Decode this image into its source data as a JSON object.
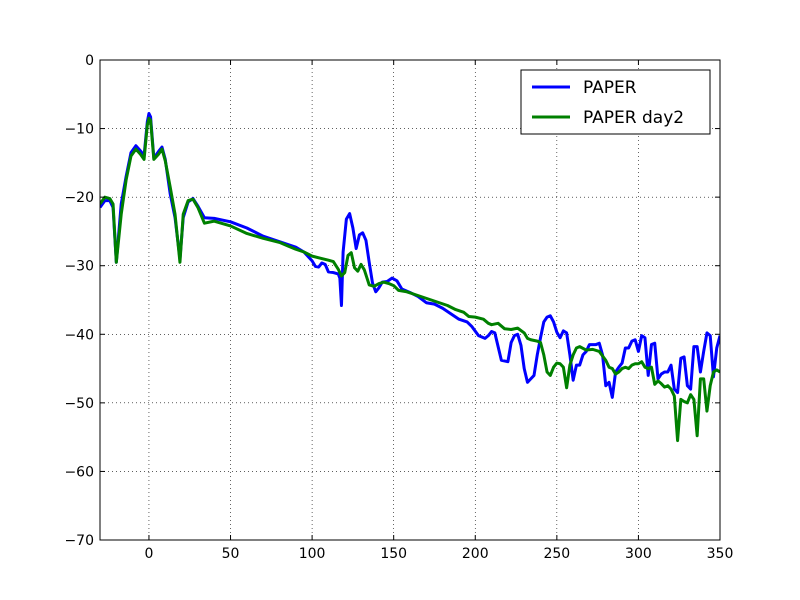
{
  "chart_data": {
    "type": "line",
    "title": "",
    "xlabel": "",
    "ylabel": "",
    "xlim": [
      -30,
      350
    ],
    "ylim": [
      -70,
      0
    ],
    "xticks": [
      0,
      50,
      100,
      150,
      200,
      250,
      300,
      350
    ],
    "yticks": [
      0,
      -10,
      -20,
      -30,
      -40,
      -50,
      -60,
      -70
    ],
    "grid": true,
    "legend_position": "top-right",
    "series": [
      {
        "name": "PAPER",
        "color": "#0000ff",
        "points": [
          [
            -30,
            -21.5
          ],
          [
            -27,
            -20.5
          ],
          [
            -24,
            -20.5
          ],
          [
            -22,
            -21.5
          ],
          [
            -20,
            -29.5
          ],
          [
            -17,
            -21.0
          ],
          [
            -14,
            -17.0
          ],
          [
            -11,
            -13.5
          ],
          [
            -8,
            -12.5
          ],
          [
            -5,
            -13.3
          ],
          [
            -3,
            -14.0
          ],
          [
            -1,
            -9.0
          ],
          [
            0,
            -7.8
          ],
          [
            1,
            -8.3
          ],
          [
            3,
            -14.3
          ],
          [
            6,
            -13.3
          ],
          [
            8,
            -12.7
          ],
          [
            10,
            -14.5
          ],
          [
            13,
            -19.5
          ],
          [
            16,
            -23.0
          ],
          [
            19,
            -29.0
          ],
          [
            21,
            -23.0
          ],
          [
            24,
            -20.7
          ],
          [
            27,
            -20.2
          ],
          [
            30,
            -21.3
          ],
          [
            34,
            -23.0
          ],
          [
            40,
            -23.1
          ],
          [
            50,
            -23.6
          ],
          [
            60,
            -24.5
          ],
          [
            70,
            -25.7
          ],
          [
            80,
            -26.5
          ],
          [
            85,
            -26.9
          ],
          [
            90,
            -27.3
          ],
          [
            95,
            -28.0
          ],
          [
            100,
            -29.3
          ],
          [
            102,
            -30.1
          ],
          [
            104,
            -30.2
          ],
          [
            106,
            -29.6
          ],
          [
            108,
            -29.8
          ],
          [
            110,
            -30.9
          ],
          [
            113,
            -31.0
          ],
          [
            116,
            -31.2
          ],
          [
            117,
            -31.8
          ],
          [
            118,
            -35.8
          ],
          [
            119,
            -28.0
          ],
          [
            121,
            -23.2
          ],
          [
            123,
            -22.4
          ],
          [
            125,
            -24.5
          ],
          [
            127,
            -27.5
          ],
          [
            129,
            -25.5
          ],
          [
            131,
            -25.2
          ],
          [
            133,
            -26.3
          ],
          [
            135,
            -29.5
          ],
          [
            137,
            -32.5
          ],
          [
            139,
            -33.8
          ],
          [
            141,
            -33.2
          ],
          [
            143,
            -32.4
          ],
          [
            146,
            -32.3
          ],
          [
            149,
            -31.8
          ],
          [
            152,
            -32.2
          ],
          [
            155,
            -33.4
          ],
          [
            160,
            -33.9
          ],
          [
            165,
            -34.5
          ],
          [
            170,
            -35.4
          ],
          [
            175,
            -35.6
          ],
          [
            180,
            -36.2
          ],
          [
            185,
            -37.0
          ],
          [
            190,
            -37.8
          ],
          [
            195,
            -38.2
          ],
          [
            198,
            -38.9
          ],
          [
            202,
            -40.2
          ],
          [
            206,
            -40.6
          ],
          [
            208,
            -40.2
          ],
          [
            210,
            -39.6
          ],
          [
            212,
            -39.8
          ],
          [
            214,
            -41.8
          ],
          [
            216,
            -43.8
          ],
          [
            220,
            -44.0
          ],
          [
            222,
            -41.2
          ],
          [
            224,
            -40.2
          ],
          [
            226,
            -40.0
          ],
          [
            228,
            -41.6
          ],
          [
            230,
            -45.0
          ],
          [
            232,
            -47.0
          ],
          [
            234,
            -46.5
          ],
          [
            236,
            -46.0
          ],
          [
            238,
            -43.0
          ],
          [
            240,
            -40.5
          ],
          [
            242,
            -38.2
          ],
          [
            244,
            -37.5
          ],
          [
            246,
            -37.3
          ],
          [
            248,
            -38.2
          ],
          [
            250,
            -39.7
          ],
          [
            252,
            -40.5
          ],
          [
            254,
            -39.5
          ],
          [
            256,
            -39.8
          ],
          [
            258,
            -43.0
          ],
          [
            260,
            -46.7
          ],
          [
            262,
            -44.5
          ],
          [
            264,
            -44.5
          ],
          [
            266,
            -43.0
          ],
          [
            268,
            -42.5
          ],
          [
            270,
            -41.5
          ],
          [
            272,
            -41.5
          ],
          [
            274,
            -41.5
          ],
          [
            276,
            -41.3
          ],
          [
            278,
            -43.0
          ],
          [
            280,
            -47.5
          ],
          [
            282,
            -47.0
          ],
          [
            284,
            -49.2
          ],
          [
            286,
            -45.5
          ],
          [
            288,
            -44.8
          ],
          [
            290,
            -44.2
          ],
          [
            292,
            -42.0
          ],
          [
            294,
            -42.0
          ],
          [
            296,
            -41.0
          ],
          [
            298,
            -40.8
          ],
          [
            300,
            -42.5
          ],
          [
            302,
            -40.2
          ],
          [
            304,
            -40.5
          ],
          [
            306,
            -46.0
          ],
          [
            308,
            -41.5
          ],
          [
            310,
            -41.3
          ],
          [
            312,
            -46.5
          ],
          [
            314,
            -45.8
          ],
          [
            316,
            -45.5
          ],
          [
            318,
            -45.5
          ],
          [
            320,
            -44.5
          ],
          [
            322,
            -48.0
          ],
          [
            324,
            -48.5
          ],
          [
            326,
            -43.5
          ],
          [
            328,
            -43.3
          ],
          [
            330,
            -47.5
          ],
          [
            332,
            -48.0
          ],
          [
            334,
            -41.8
          ],
          [
            336,
            -41.8
          ],
          [
            338,
            -45.5
          ],
          [
            340,
            -42.5
          ],
          [
            342,
            -39.8
          ],
          [
            344,
            -40.2
          ],
          [
            346,
            -46.2
          ],
          [
            348,
            -42.0
          ],
          [
            350,
            -40.2
          ]
        ]
      },
      {
        "name": "PAPER day2",
        "color": "#008000",
        "points": [
          [
            -30,
            -21.0
          ],
          [
            -27,
            -20.0
          ],
          [
            -24,
            -20.2
          ],
          [
            -22,
            -21.0
          ],
          [
            -20,
            -29.5
          ],
          [
            -17,
            -22.5
          ],
          [
            -14,
            -17.5
          ],
          [
            -11,
            -14.0
          ],
          [
            -8,
            -13.0
          ],
          [
            -5,
            -13.8
          ],
          [
            -3,
            -14.5
          ],
          [
            -1,
            -9.5
          ],
          [
            0,
            -8.5
          ],
          [
            1,
            -8.8
          ],
          [
            3,
            -14.5
          ],
          [
            6,
            -13.7
          ],
          [
            8,
            -13.0
          ],
          [
            10,
            -14.7
          ],
          [
            13,
            -18.5
          ],
          [
            16,
            -22.5
          ],
          [
            19,
            -29.5
          ],
          [
            21,
            -22.5
          ],
          [
            24,
            -20.5
          ],
          [
            27,
            -20.3
          ],
          [
            30,
            -21.5
          ],
          [
            34,
            -23.8
          ],
          [
            40,
            -23.5
          ],
          [
            50,
            -24.2
          ],
          [
            60,
            -25.3
          ],
          [
            70,
            -26.0
          ],
          [
            80,
            -26.6
          ],
          [
            85,
            -27.1
          ],
          [
            90,
            -27.6
          ],
          [
            95,
            -28.0
          ],
          [
            100,
            -28.6
          ],
          [
            105,
            -28.9
          ],
          [
            110,
            -29.2
          ],
          [
            113,
            -29.4
          ],
          [
            116,
            -30.5
          ],
          [
            118,
            -31.5
          ],
          [
            120,
            -31.0
          ],
          [
            122,
            -28.5
          ],
          [
            124,
            -28.1
          ],
          [
            126,
            -30.3
          ],
          [
            128,
            -30.8
          ],
          [
            130,
            -29.8
          ],
          [
            132,
            -30.6
          ],
          [
            135,
            -32.8
          ],
          [
            138,
            -33.0
          ],
          [
            141,
            -32.6
          ],
          [
            144,
            -32.4
          ],
          [
            147,
            -32.6
          ],
          [
            150,
            -32.9
          ],
          [
            153,
            -33.6
          ],
          [
            158,
            -33.8
          ],
          [
            163,
            -34.2
          ],
          [
            168,
            -34.6
          ],
          [
            173,
            -35.0
          ],
          [
            178,
            -35.4
          ],
          [
            183,
            -35.8
          ],
          [
            188,
            -36.4
          ],
          [
            193,
            -36.8
          ],
          [
            196,
            -37.4
          ],
          [
            200,
            -37.5
          ],
          [
            205,
            -37.8
          ],
          [
            208,
            -38.4
          ],
          [
            210,
            -38.6
          ],
          [
            214,
            -38.4
          ],
          [
            218,
            -39.2
          ],
          [
            222,
            -39.3
          ],
          [
            226,
            -39.1
          ],
          [
            230,
            -39.8
          ],
          [
            232,
            -40.6
          ],
          [
            234,
            -40.8
          ],
          [
            238,
            -41.0
          ],
          [
            240,
            -41.2
          ],
          [
            242,
            -43.0
          ],
          [
            244,
            -45.5
          ],
          [
            246,
            -46.0
          ],
          [
            248,
            -44.8
          ],
          [
            250,
            -44.2
          ],
          [
            252,
            -44.3
          ],
          [
            254,
            -44.8
          ],
          [
            256,
            -47.8
          ],
          [
            258,
            -44.5
          ],
          [
            260,
            -43.0
          ],
          [
            262,
            -42.0
          ],
          [
            264,
            -41.8
          ],
          [
            268,
            -42.3
          ],
          [
            272,
            -42.2
          ],
          [
            276,
            -42.5
          ],
          [
            280,
            -43.8
          ],
          [
            282,
            -44.8
          ],
          [
            284,
            -45.0
          ],
          [
            286,
            -45.8
          ],
          [
            288,
            -45.5
          ],
          [
            290,
            -45.0
          ],
          [
            292,
            -44.8
          ],
          [
            294,
            -45.0
          ],
          [
            296,
            -44.5
          ],
          [
            298,
            -44.3
          ],
          [
            300,
            -44.3
          ],
          [
            302,
            -44.0
          ],
          [
            304,
            -44.8
          ],
          [
            306,
            -45.0
          ],
          [
            308,
            -44.8
          ],
          [
            310,
            -47.3
          ],
          [
            312,
            -46.8
          ],
          [
            314,
            -47.2
          ],
          [
            316,
            -47.7
          ],
          [
            318,
            -47.5
          ],
          [
            320,
            -48.0
          ],
          [
            322,
            -49.0
          ],
          [
            324,
            -55.5
          ],
          [
            326,
            -49.5
          ],
          [
            328,
            -49.8
          ],
          [
            330,
            -50.0
          ],
          [
            332,
            -48.8
          ],
          [
            334,
            -49.5
          ],
          [
            336,
            -54.8
          ],
          [
            338,
            -46.5
          ],
          [
            340,
            -46.5
          ],
          [
            342,
            -51.2
          ],
          [
            344,
            -47.5
          ],
          [
            346,
            -45.5
          ],
          [
            348,
            -45.2
          ],
          [
            350,
            -45.5
          ]
        ]
      }
    ]
  }
}
